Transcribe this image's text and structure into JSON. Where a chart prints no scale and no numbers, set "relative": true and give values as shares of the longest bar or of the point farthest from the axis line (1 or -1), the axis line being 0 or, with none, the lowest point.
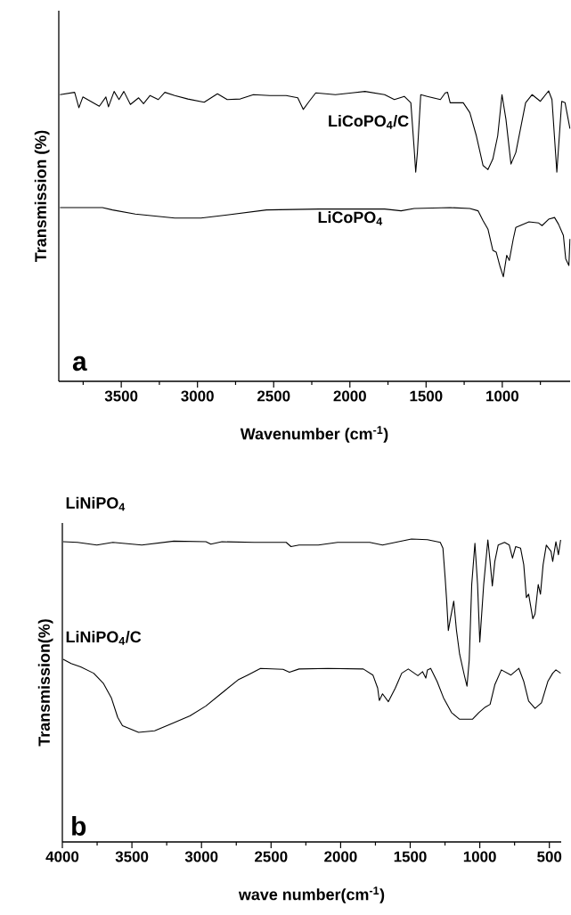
{
  "chart_data": [
    {
      "type": "line",
      "relative": true,
      "xlabel": "Wavenumber (cm$^{-1}$)",
      "ylabel": "Transmission (%)",
      "annotations": [
        "a"
      ],
      "tick_labels": "x",
      "marker": "none",
      "line_style": "solid",
      "xlim": [
        3910,
        555
      ],
      "xticks": [
        {
          "value": 3750,
          "label": null
        },
        3500,
        {
          "value": 3250,
          "label": null
        },
        3000,
        {
          "value": 2750,
          "label": null
        },
        2500,
        {
          "value": 2250,
          "label": null
        },
        2000,
        {
          "value": 1750,
          "label": null
        },
        1500,
        {
          "value": 1250,
          "label": null
        },
        1000,
        {
          "value": 750,
          "label": null
        }
      ],
      "series": [
        {
          "name": "LiCoPO$_{4}$/C",
          "color": "#000000",
          "x": [
            3902,
            3806,
            3778,
            3752,
            3644,
            3601,
            3584,
            3547,
            3515,
            3483,
            3440,
            3386,
            3354,
            3311,
            3257,
            3214,
            3149,
            3063,
            2956,
            2869,
            2805,
            2719,
            2633,
            2525,
            2418,
            2342,
            2306,
            2267,
            2224,
            2095,
            1987,
            1901,
            1772,
            1708,
            1643,
            1600,
            1578,
            1568,
            1557,
            1535,
            1492,
            1406,
            1374,
            1359,
            1342,
            1256,
            1213,
            1170,
            1126,
            1094,
            1062,
            1030,
            1002,
            976,
            943,
            911,
            847,
            804,
            750,
            696,
            674,
            642,
            610,
            588,
            556
          ],
          "values": [
            0.987,
            0.995,
            0.942,
            0.979,
            0.947,
            0.979,
            0.945,
            0.998,
            0.97,
            0.998,
            0.953,
            0.976,
            0.956,
            0.984,
            0.97,
            0.995,
            0.984,
            0.972,
            0.961,
            0.99,
            0.97,
            0.972,
            0.987,
            0.984,
            0.984,
            0.976,
            0.936,
            0.964,
            0.993,
            0.987,
            0.993,
            0.998,
            0.987,
            0.97,
            0.981,
            0.959,
            0.8,
            0.72,
            0.788,
            0.987,
            0.981,
            0.97,
            0.993,
            0.995,
            0.959,
            0.959,
            0.925,
            0.845,
            0.743,
            0.729,
            0.765,
            0.845,
            0.987,
            0.902,
            0.748,
            0.788,
            0.959,
            0.987,
            0.964,
            1.0,
            0.97,
            0.72,
            0.964,
            0.959,
            0.87
          ]
        },
        {
          "name": "LiCoPO$_{4}$",
          "color": "#000000",
          "x": [
            3902,
            3623,
            3558,
            3408,
            3149,
            2977,
            2805,
            2547,
            2202,
            1772,
            1664,
            1578,
            1342,
            1213,
            1159,
            1126,
            1094,
            1062,
            1040,
            1014,
            993,
            971,
            954,
            928,
            911,
            825,
            761,
            739,
            696,
            657,
            631,
            599,
            584,
            563,
            556
          ],
          "values": [
            0.598,
            0.598,
            0.59,
            0.576,
            0.562,
            0.562,
            0.573,
            0.59,
            0.593,
            0.593,
            0.587,
            0.595,
            0.598,
            0.595,
            0.587,
            0.553,
            0.524,
            0.451,
            0.445,
            0.394,
            0.36,
            0.434,
            0.416,
            0.49,
            0.53,
            0.549,
            0.545,
            0.536,
            0.558,
            0.564,
            0.541,
            0.502,
            0.422,
            0.399,
            0.49
          ]
        }
      ]
    },
    {
      "type": "line",
      "relative": true,
      "xlabel": "wave number(cm$^{-1}$)",
      "ylabel": "Transmission(%)",
      "annotations": [
        "b"
      ],
      "tick_labels": "x",
      "marker": "none",
      "line_style": "solid",
      "xlim": [
        4000,
        415
      ],
      "xticks": [
        4000,
        {
          "value": 3750,
          "label": null
        },
        3500,
        {
          "value": 3250,
          "label": null
        },
        3000,
        {
          "value": 2750,
          "label": null
        },
        2500,
        {
          "value": 2250,
          "label": null
        },
        2000,
        {
          "value": 1750,
          "label": null
        },
        1500,
        {
          "value": 1250,
          "label": null
        },
        1000,
        {
          "value": 750,
          "label": null
        },
        500
      ],
      "series": [
        {
          "name": "LiNiPO$_{4}$",
          "color": "#000000",
          "x": [
            3994,
            3891,
            3752,
            3637,
            3429,
            3199,
            2968,
            2933,
            2853,
            2622,
            2391,
            2357,
            2299,
            2160,
            2022,
            1791,
            1699,
            1607,
            1491,
            1376,
            1284,
            1265,
            1249,
            1238,
            1226,
            1210,
            1187,
            1168,
            1145,
            1111,
            1092,
            1076,
            1058,
            1035,
            1016,
            1000,
            972,
            942,
            926,
            910,
            892,
            868,
            822,
            788,
            765,
            742,
            707,
            684,
            665,
            649,
            619,
            603,
            580,
            564,
            545,
            522,
            488,
            476,
            453,
            435,
            419
          ],
          "values": [
            0.991,
            0.989,
            0.98,
            0.989,
            0.98,
            0.993,
            0.991,
            0.983,
            0.991,
            0.989,
            0.989,
            0.975,
            0.98,
            0.98,
            0.989,
            0.989,
            0.98,
            0.989,
            1.0,
            0.998,
            0.989,
            0.97,
            0.872,
            0.796,
            0.698,
            0.74,
            0.795,
            0.7,
            0.62,
            0.55,
            0.514,
            0.6,
            0.85,
            0.986,
            0.85,
            0.66,
            0.85,
            0.997,
            0.926,
            0.845,
            0.926,
            0.98,
            0.989,
            0.98,
            0.937,
            0.975,
            0.97,
            0.915,
            0.807,
            0.818,
            0.737,
            0.753,
            0.85,
            0.818,
            0.915,
            0.98,
            0.959,
            0.926,
            0.991,
            0.948,
            0.997
          ]
        },
        {
          "name": "LiNiPO$_{4}$/C",
          "color": "#000000",
          "x": [
            3994,
            3937,
            3868,
            3775,
            3706,
            3648,
            3602,
            3568,
            3452,
            3337,
            3222,
            3083,
            2968,
            2853,
            2737,
            2668,
            2576,
            2414,
            2368,
            2299,
            2091,
            1837,
            1768,
            1734,
            1722,
            1699,
            1657,
            1607,
            1561,
            1514,
            1445,
            1411,
            1388,
            1376,
            1353,
            1307,
            1261,
            1203,
            1145,
            1053,
            1007,
            961,
            926,
            892,
            845,
            776,
            719,
            684,
            649,
            603,
            557,
            511,
            476,
            453,
            419
          ],
          "values": [
            0.603,
            0.589,
            0.578,
            0.557,
            0.524,
            0.476,
            0.411,
            0.384,
            0.362,
            0.367,
            0.389,
            0.416,
            0.449,
            0.492,
            0.535,
            0.551,
            0.573,
            0.57,
            0.56,
            0.571,
            0.573,
            0.571,
            0.551,
            0.508,
            0.467,
            0.489,
            0.463,
            0.508,
            0.557,
            0.571,
            0.549,
            0.562,
            0.541,
            0.568,
            0.573,
            0.53,
            0.476,
            0.427,
            0.405,
            0.405,
            0.427,
            0.445,
            0.454,
            0.519,
            0.568,
            0.551,
            0.573,
            0.53,
            0.465,
            0.441,
            0.459,
            0.53,
            0.557,
            0.568,
            0.557
          ]
        }
      ]
    }
  ]
}
